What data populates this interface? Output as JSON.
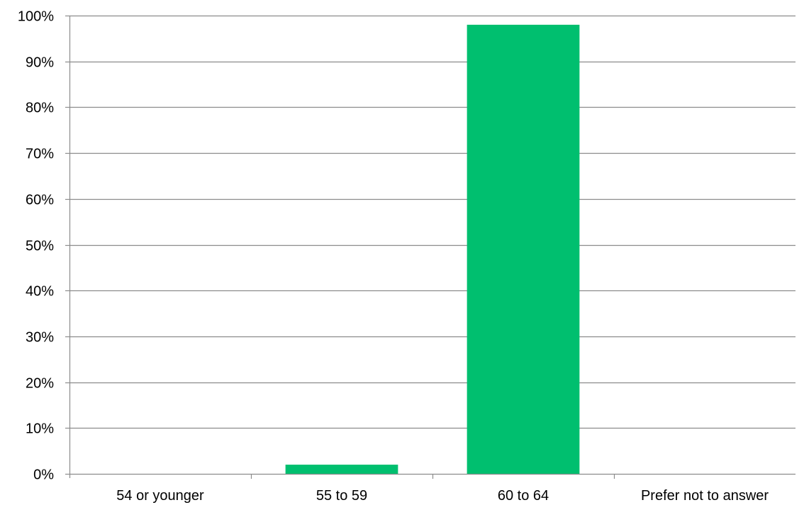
{
  "chart_data": {
    "type": "bar",
    "categories": [
      "54 or younger",
      "55 to 59",
      "60 to 64",
      "Prefer not to answer"
    ],
    "values": [
      0,
      2,
      98,
      0
    ],
    "ylim": [
      0,
      100
    ],
    "ytick_step": 10,
    "ytick_suffix": "%",
    "grid": true,
    "bar_color": "#00bf6f",
    "grid_color": "#8c8c8c",
    "title": "",
    "xlabel": "",
    "ylabel": ""
  }
}
